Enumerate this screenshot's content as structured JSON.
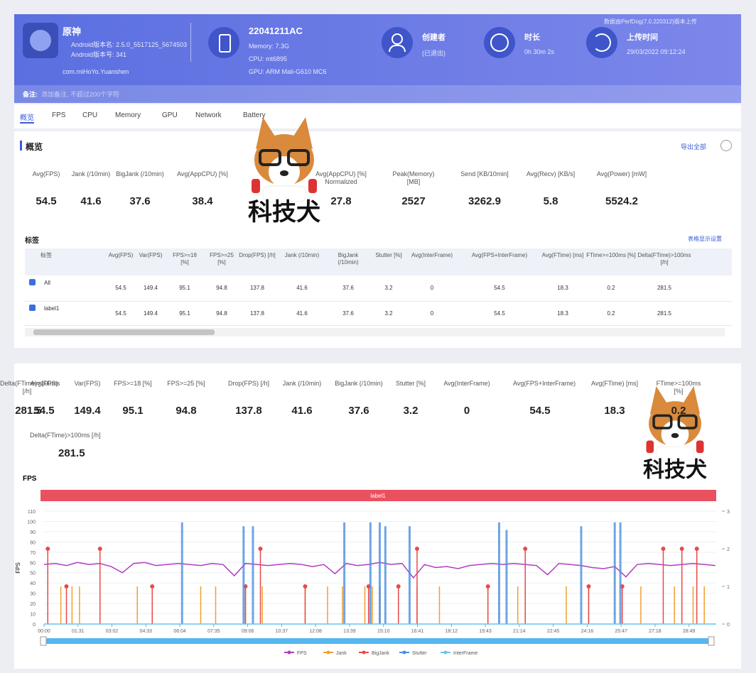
{
  "header": {
    "app_name": "原神",
    "app_lines": [
      "Android版本名: 2.5.0_5517125_5674503",
      "Android版本号: 341",
      "com.miHoYo.Yuanshen"
    ],
    "device": "22041211AC",
    "device_lines": [
      "Memory: 7.3G",
      "CPU: mt6895",
      "GPU: ARM Mali-G610 MC6"
    ],
    "creator_label": "创建者",
    "creator": "(已退出)",
    "duration_label": "时长",
    "duration": "0h 30m 2s",
    "upload_label": "上传时间",
    "upload_time": "29/03/2022 09:12:24",
    "source_note": "数据由PerfDog(7.0.220312)版本上传",
    "remark_label": "备注:",
    "remark_placeholder": "添加备注, 不超过200个字符"
  },
  "tabs": [
    "概览",
    "FPS",
    "CPU",
    "Memory",
    "GPU",
    "Network",
    "Battery"
  ],
  "overview": {
    "title": "概览",
    "export": "导出全部",
    "metrics": [
      {
        "label": "Avg(FPS)",
        "value": 54.5
      },
      {
        "label": "Jank (/10min)",
        "value": 41.6
      },
      {
        "label": "BigJank (/10min)",
        "value": 37.6
      },
      {
        "label": "Avg(AppCPU) [%]",
        "value": 38.4
      },
      {
        "label": "Avg(AppCPU) [%] Normalized",
        "value": 27.8
      },
      {
        "label": "Peak(Memory) [MB]",
        "value": 2527
      },
      {
        "label": "Send [KB/10min]",
        "value": 3262.9
      },
      {
        "label": "Avg(Recv) [KB/s]",
        "value": 5.8
      },
      {
        "label": "Avg(Power) [mW]",
        "value": 5524.2
      }
    ]
  },
  "labels_table": {
    "title": "标签",
    "settings": "表格显示设置",
    "columns": [
      "标签",
      "Avg(FPS)",
      "Var(FPS)",
      "FPS>=18 [%]",
      "FPS>=25 [%]",
      "Drop(FPS) [/h]",
      "Jank (/10min)",
      "BigJank (/10min)",
      "Stutter [%]",
      "Avg(InterFrame)",
      "Avg(FPS+InterFrame)",
      "Avg(FTime) [ms]",
      "FTime>=100ms [%]",
      "Delta(FTime)>100ms [/h]"
    ],
    "rows": [
      [
        "All",
        54.5,
        149.4,
        95.1,
        94.8,
        137.8,
        41.6,
        37.6,
        3.2,
        0,
        54.5,
        18.3,
        0.2,
        281.5
      ],
      [
        "label1",
        54.5,
        149.4,
        95.1,
        94.8,
        137.8,
        41.6,
        37.6,
        3.2,
        0,
        54.5,
        18.3,
        0.2,
        281.5
      ]
    ]
  },
  "label_metrics": {
    "metrics": [
      {
        "label": "Avg(FPS)",
        "value": 54.5
      },
      {
        "label": "Var(FPS)",
        "value": 149.4
      },
      {
        "label": "FPS>=18 [%]",
        "value": 95.1
      },
      {
        "label": "FPS>=25 [%]",
        "value": 94.8
      },
      {
        "label": "Drop(FPS) [/h]",
        "value": 137.8
      },
      {
        "label": "Jank (/10min)",
        "value": 41.6
      },
      {
        "label": "BigJank (/10min)",
        "value": 37.6
      },
      {
        "label": "Stutter [%]",
        "value": 3.2
      },
      {
        "label": "Avg(InterFrame)",
        "value": 0
      },
      {
        "label": "Avg(FPS+InterFrame)",
        "value": 54.5
      },
      {
        "label": "Avg(FTime) [ms]",
        "value": 18.3
      },
      {
        "label": "FTime>=100ms [%]",
        "value": 0.2
      },
      {
        "label": "Delta(FTime)>100ms [/h]",
        "value": 281.5
      }
    ]
  },
  "watermark": "科技犬",
  "chart_data": {
    "type": "line",
    "title": "FPS",
    "range_label": "label1",
    "ylabel": "FPS",
    "xlim": [
      0,
      1802
    ],
    "xticks": [
      {
        "value": 0,
        "label": "00:00"
      },
      {
        "value": 91,
        "label": "01:31"
      },
      {
        "value": 182,
        "label": "03:02"
      },
      {
        "value": 273,
        "label": "04:33"
      },
      {
        "value": 364,
        "label": "06:04"
      },
      {
        "value": 455,
        "label": "07:35"
      },
      {
        "value": 546,
        "label": "09:06"
      },
      {
        "value": 637,
        "label": "10:37"
      },
      {
        "value": 728,
        "label": "12:08"
      },
      {
        "value": 819,
        "label": "13:39"
      },
      {
        "value": 910,
        "label": "15:10"
      },
      {
        "value": 1001,
        "label": "16:41"
      },
      {
        "value": 1092,
        "label": "18:12"
      },
      {
        "value": 1183,
        "label": "19:43"
      },
      {
        "value": 1274,
        "label": "21:14"
      },
      {
        "value": 1365,
        "label": "22:45"
      },
      {
        "value": 1456,
        "label": "24:16"
      },
      {
        "value": 1547,
        "label": "25:47"
      },
      {
        "value": 1638,
        "label": "27:18"
      },
      {
        "value": 1729,
        "label": "28:49"
      }
    ],
    "ylim": [
      0,
      110
    ],
    "yticks": [
      0,
      10,
      20,
      30,
      40,
      50,
      60,
      70,
      80,
      90,
      100,
      110
    ],
    "y2lim": [
      0,
      3
    ],
    "y2ticks": [
      0,
      1,
      2,
      3
    ],
    "grid": true,
    "series": [
      {
        "name": "FPS",
        "color": "#b23cc0",
        "x": [
          0,
          30,
          60,
          90,
          120,
          150,
          180,
          210,
          240,
          270,
          300,
          330,
          360,
          390,
          420,
          450,
          480,
          510,
          540,
          570,
          600,
          630,
          660,
          690,
          720,
          750,
          780,
          810,
          840,
          870,
          900,
          930,
          960,
          990,
          1020,
          1050,
          1080,
          1110,
          1140,
          1170,
          1200,
          1230,
          1260,
          1290,
          1320,
          1350,
          1380,
          1410,
          1440,
          1470,
          1500,
          1530,
          1560,
          1590,
          1620,
          1650,
          1680,
          1710,
          1740,
          1770,
          1800
        ],
        "values": [
          58,
          59,
          57,
          60,
          58,
          59,
          56,
          50,
          59,
          60,
          57,
          58,
          59,
          58,
          57,
          59,
          58,
          47,
          59,
          58,
          57,
          58,
          59,
          58,
          56,
          58,
          49,
          59,
          57,
          58,
          60,
          58,
          59,
          45,
          58,
          55,
          56,
          54,
          57,
          58,
          59,
          58,
          59,
          58,
          57,
          48,
          59,
          58,
          57,
          55,
          54,
          56,
          46,
          58,
          59,
          58,
          57,
          58,
          59,
          58,
          57
        ]
      },
      {
        "name": "Jank",
        "color": "#f0a030",
        "axis": "y2",
        "x": [
          10,
          45,
          75,
          95,
          150,
          250,
          290,
          420,
          460,
          540,
          585,
          700,
          760,
          800,
          860,
          880,
          900,
          1000,
          1060,
          1190,
          1270,
          1290,
          1400,
          1460,
          1550,
          1600,
          1690,
          1740,
          1770
        ],
        "values": [
          1,
          1,
          1,
          1,
          1,
          1,
          1,
          1,
          1,
          1,
          1,
          1,
          1,
          1,
          1,
          1,
          1,
          1,
          1,
          1,
          1,
          1,
          1,
          1,
          1,
          1,
          1,
          1,
          1
        ]
      },
      {
        "name": "BigJank",
        "color": "#e84a4a",
        "axis": "y2",
        "x": [
          10,
          60,
          150,
          290,
          540,
          580,
          700,
          870,
          950,
          1000,
          1190,
          1290,
          1460,
          1550,
          1660,
          1710,
          1750
        ],
        "values": [
          2,
          1,
          2,
          1,
          1,
          2,
          1,
          1,
          1,
          2,
          1,
          2,
          1,
          1,
          2,
          2,
          2
        ]
      },
      {
        "name": "Stutter",
        "color": "#4a8ee0",
        "axis": "y2",
        "x": [
          370,
          535,
          560,
          805,
          875,
          900,
          915,
          980,
          1220,
          1240,
          1440,
          1530,
          1545
        ],
        "values": [
          2.7,
          2.6,
          2.6,
          2.7,
          2.7,
          2.7,
          2.6,
          2.6,
          2.7,
          2.5,
          2.6,
          2.7,
          2.7
        ]
      },
      {
        "name": "InterFrame",
        "color": "#6cc3f0",
        "axis": "y2",
        "x": [
          0,
          1802
        ],
        "values": [
          0,
          0
        ]
      }
    ]
  }
}
